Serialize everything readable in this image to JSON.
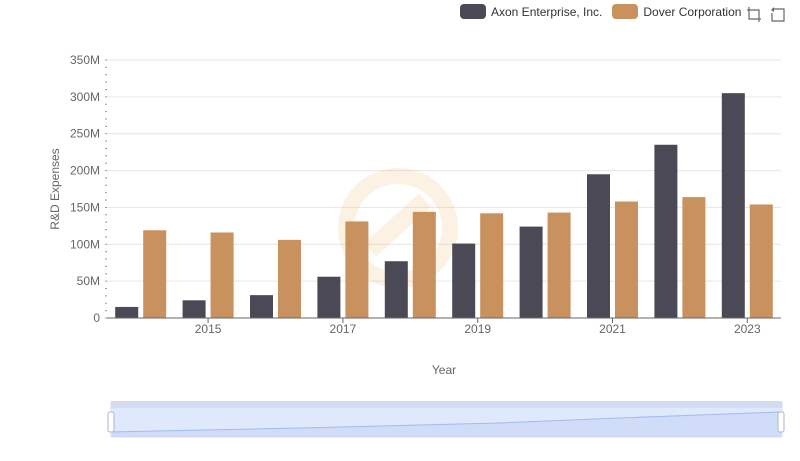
{
  "legend": {
    "items": [
      {
        "label": "Axon Enterprise, Inc.",
        "color": "#4a4955"
      },
      {
        "label": "Dover Corporation",
        "color": "#c8915e"
      }
    ]
  },
  "toolbox": {
    "icons": [
      "zoom-icon",
      "restore-icon"
    ]
  },
  "chart_data": {
    "type": "bar",
    "categories": [
      "2014",
      "2015",
      "2016",
      "2017",
      "2018",
      "2019",
      "2020",
      "2021",
      "2022",
      "2023"
    ],
    "x_tick_labels": [
      "2015",
      "2017",
      "2019",
      "2021",
      "2023"
    ],
    "series": [
      {
        "name": "Axon Enterprise, Inc.",
        "color": "#4a4955",
        "values": [
          15,
          24,
          31,
          56,
          77,
          101,
          124,
          195,
          235,
          305
        ]
      },
      {
        "name": "Dover Corporation",
        "color": "#c8915e",
        "values": [
          119,
          116,
          106,
          131,
          144,
          142,
          143,
          158,
          164,
          154
        ]
      }
    ],
    "xlabel": "Year",
    "ylabel": "R&D Expenses",
    "ylim": [
      0,
      350
    ],
    "yticks": [
      0,
      50,
      100,
      150,
      200,
      250,
      300,
      350
    ],
    "ytick_labels": [
      "0",
      "50M",
      "100M",
      "150M",
      "200M",
      "250M",
      "300M",
      "350M"
    ],
    "grid": true,
    "legend_position": "top-right"
  }
}
